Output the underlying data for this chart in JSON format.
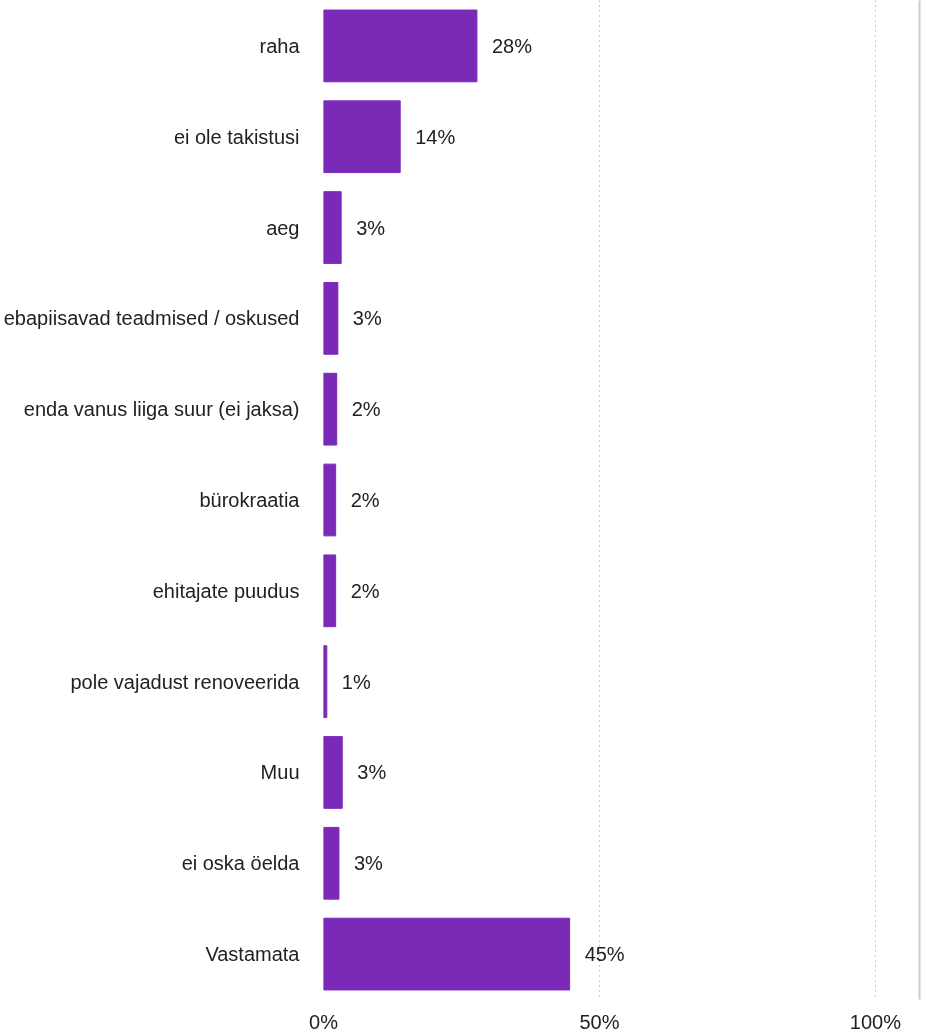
{
  "chart_data": {
    "type": "bar",
    "orientation": "horizontal",
    "categories": [
      "raha",
      "ei ole takistusi",
      "aeg",
      "ebapiisavad teadmised / oskused",
      "enda vanus liiga suur (ei jaksa)",
      "bürokraatia",
      "ehitajate puudus",
      "pole vajadust renoveerida",
      "Muu",
      "ei oska öelda",
      "Vastamata"
    ],
    "values": [
      27.8,
      13.9,
      3.2,
      2.6,
      2.4,
      2.2,
      2.2,
      0.6,
      3.4,
      2.8,
      44.6
    ],
    "value_labels": [
      "28%",
      "14%",
      "3%",
      "3%",
      "2%",
      "2%",
      "2%",
      "1%",
      "3%",
      "3%",
      "45%"
    ],
    "color": "#7b2ab8",
    "xlim": [
      0,
      108
    ],
    "xticks": [
      {
        "value": 0,
        "label": "0%"
      },
      {
        "value": 50,
        "label": "50%"
      },
      {
        "value": 100,
        "label": "100%"
      }
    ],
    "grid": "x"
  }
}
